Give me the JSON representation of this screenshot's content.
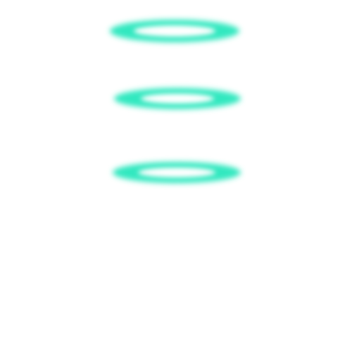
{
  "graphic": {
    "kind": "glowing-rings",
    "ring_count": 3,
    "colors": {
      "background": "#ffffff",
      "glow_outer": "#33e8c0",
      "glow_mid": "#5ef0cf",
      "glow_core": "#ffffff"
    }
  }
}
